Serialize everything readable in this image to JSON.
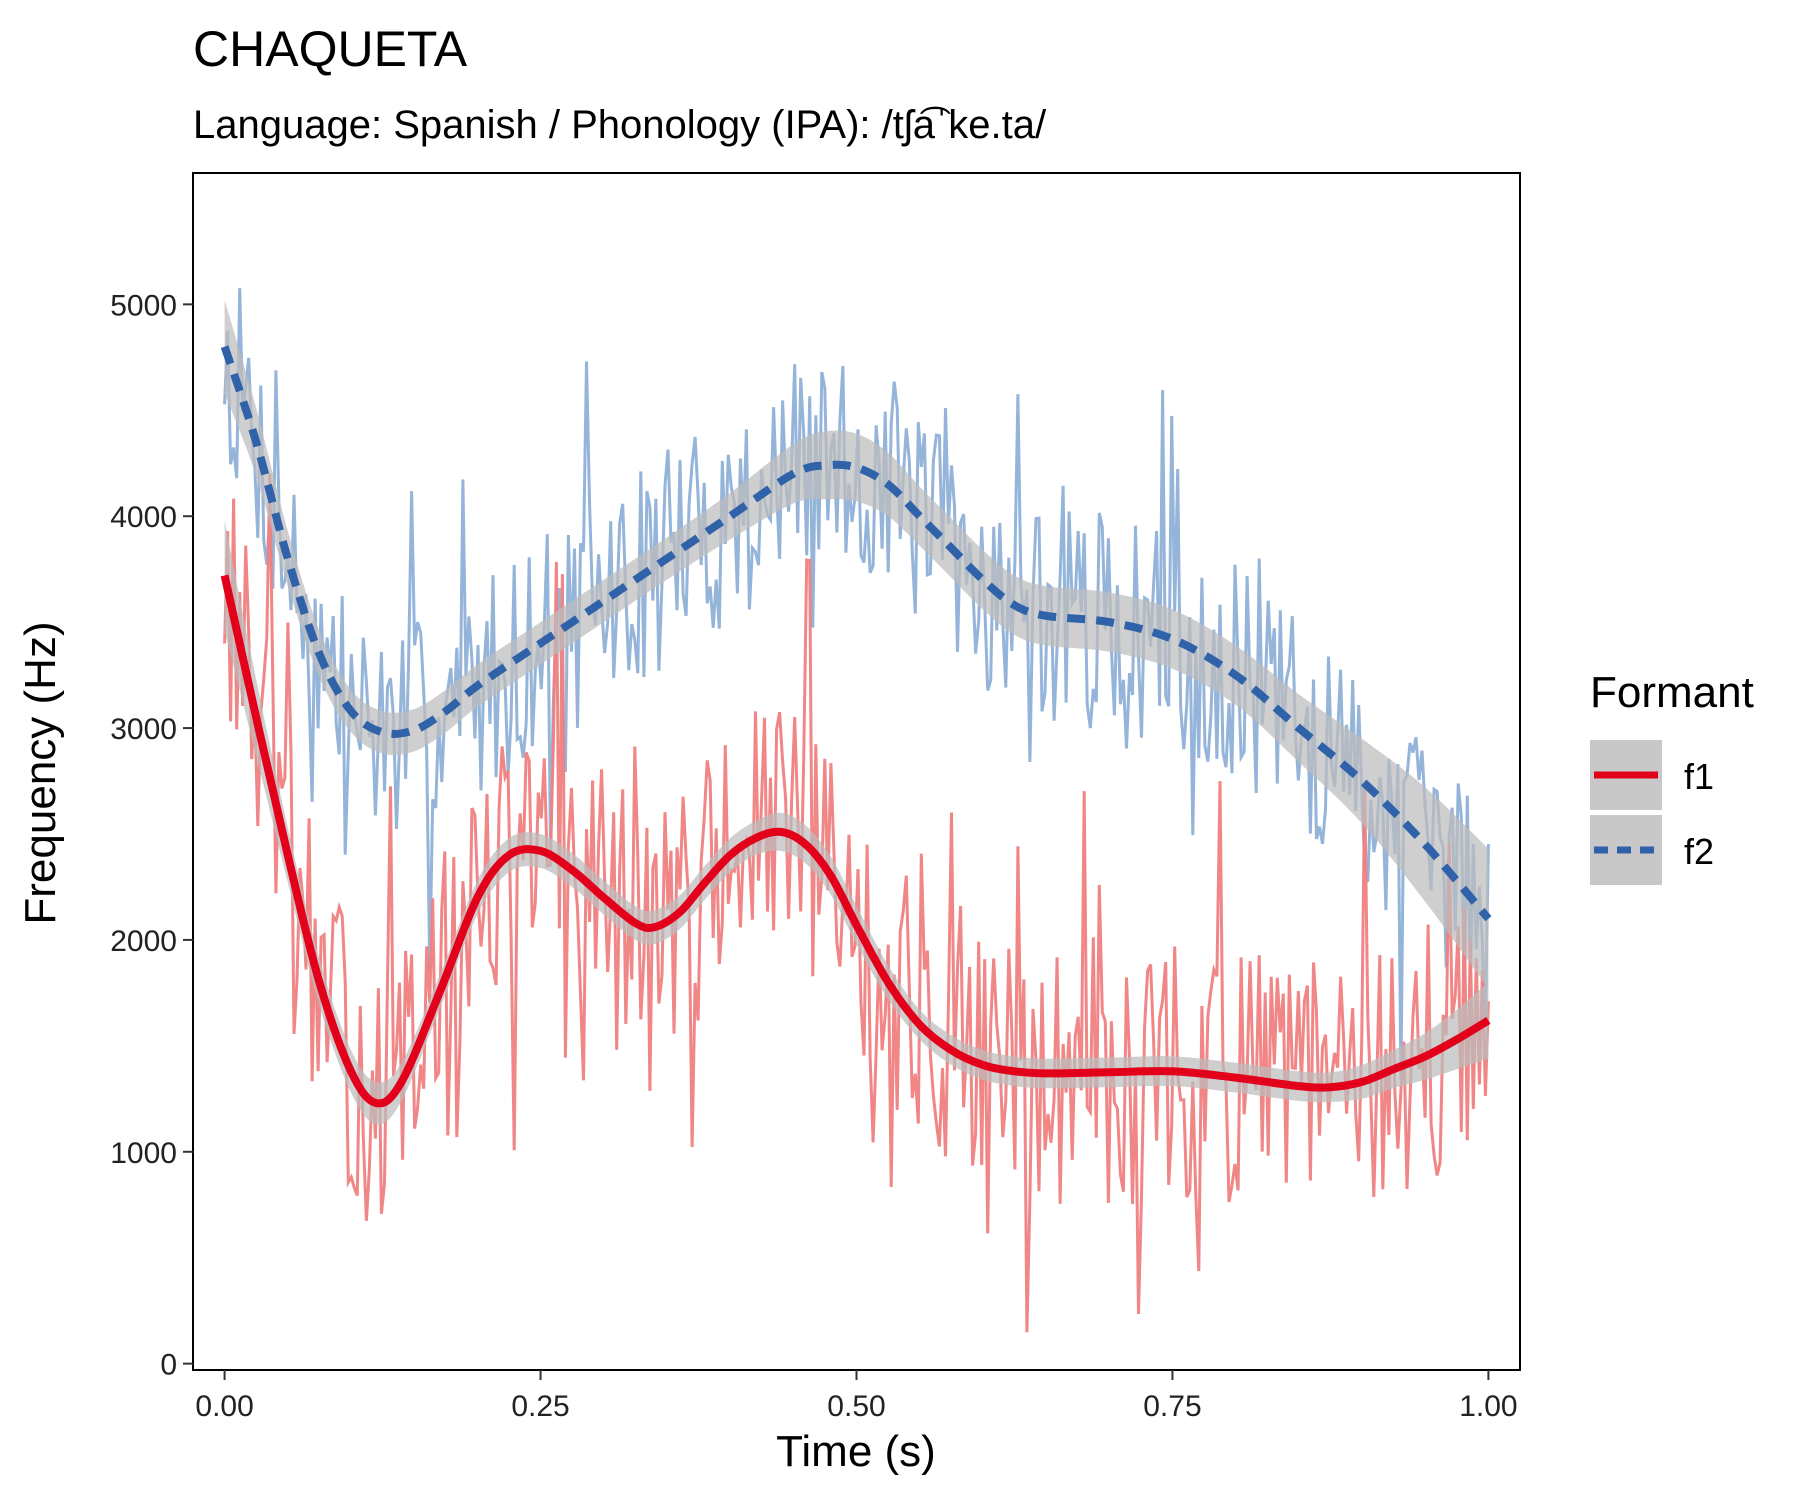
{
  "chart_data": {
    "type": "line",
    "title": "CHAQUETA",
    "subtitle": "Language: Spanish / Phonology (IPA): /tʃa͡ˈke.ta/",
    "xlabel": "Time (s)",
    "ylabel": "Frequency (Hz)",
    "xlim": [
      -0.025,
      1.025
    ],
    "ylim": [
      -30,
      5620
    ],
    "x_ticks": [
      "0.00",
      "0.25",
      "0.50",
      "0.75",
      "1.00"
    ],
    "y_ticks": [
      "0",
      "1000",
      "2000",
      "3000",
      "4000",
      "5000"
    ],
    "grid": false,
    "legend": {
      "title": "Formant",
      "position": "right",
      "entries": [
        "f1",
        "f2"
      ]
    },
    "colors": {
      "f1_raw": "#f08080",
      "f1_smooth": "#e3001b",
      "f2_raw": "#8fb0d8",
      "f2_smooth": "#2f62a8",
      "ribbon": "#bdbdbd"
    },
    "series": [
      {
        "name": "f1",
        "smooth": {
          "x": [
            0.0,
            0.025,
            0.05,
            0.075,
            0.1,
            0.12,
            0.14,
            0.17,
            0.2,
            0.225,
            0.25,
            0.275,
            0.3,
            0.325,
            0.34,
            0.36,
            0.38,
            0.4,
            0.42,
            0.44,
            0.46,
            0.48,
            0.5,
            0.525,
            0.55,
            0.575,
            0.6,
            0.625,
            0.65,
            0.7,
            0.75,
            0.8,
            0.85,
            0.875,
            0.9,
            0.925,
            0.95,
            0.975,
            1.0
          ],
          "y": [
            3720,
            3050,
            2400,
            1800,
            1380,
            1230,
            1330,
            1750,
            2200,
            2400,
            2420,
            2330,
            2200,
            2080,
            2060,
            2130,
            2270,
            2400,
            2480,
            2510,
            2450,
            2300,
            2070,
            1800,
            1600,
            1480,
            1410,
            1380,
            1370,
            1375,
            1380,
            1350,
            1310,
            1305,
            1330,
            1390,
            1450,
            1530,
            1620
          ],
          "band": [
            260,
            180,
            130,
            110,
            100,
            100,
            90,
            80,
            80,
            80,
            80,
            80,
            80,
            80,
            80,
            80,
            80,
            80,
            80,
            90,
            90,
            90,
            90,
            80,
            70,
            70,
            70,
            70,
            70,
            70,
            70,
            70,
            70,
            70,
            80,
            90,
            110,
            140,
            180
          ]
        },
        "raw": {
          "x_start": 0.0,
          "x_end": 1.0,
          "points": 420,
          "note": "noisy raw formant track around the smooth curve"
        }
      },
      {
        "name": "f2",
        "smooth": {
          "x": [
            0.0,
            0.025,
            0.05,
            0.075,
            0.1,
            0.125,
            0.15,
            0.175,
            0.2,
            0.25,
            0.3,
            0.35,
            0.4,
            0.45,
            0.475,
            0.5,
            0.525,
            0.55,
            0.575,
            0.6,
            0.625,
            0.65,
            0.7,
            0.75,
            0.8,
            0.85,
            0.9,
            0.95,
            1.0
          ],
          "y": [
            4800,
            4350,
            3800,
            3350,
            3080,
            2980,
            2990,
            3080,
            3200,
            3400,
            3600,
            3800,
            4000,
            4200,
            4240,
            4230,
            4150,
            4000,
            3850,
            3700,
            3580,
            3530,
            3500,
            3420,
            3250,
            3000,
            2750,
            2450,
            2100
          ],
          "band": [
            220,
            160,
            130,
            110,
            100,
            100,
            100,
            100,
            100,
            100,
            100,
            100,
            110,
            140,
            160,
            160,
            150,
            140,
            140,
            140,
            140,
            140,
            140,
            140,
            140,
            160,
            200,
            270,
            330
          ]
        },
        "raw": {
          "x_start": 0.0,
          "x_end": 1.0,
          "points": 420,
          "note": "noisy raw formant track around the smooth curve"
        }
      }
    ]
  }
}
